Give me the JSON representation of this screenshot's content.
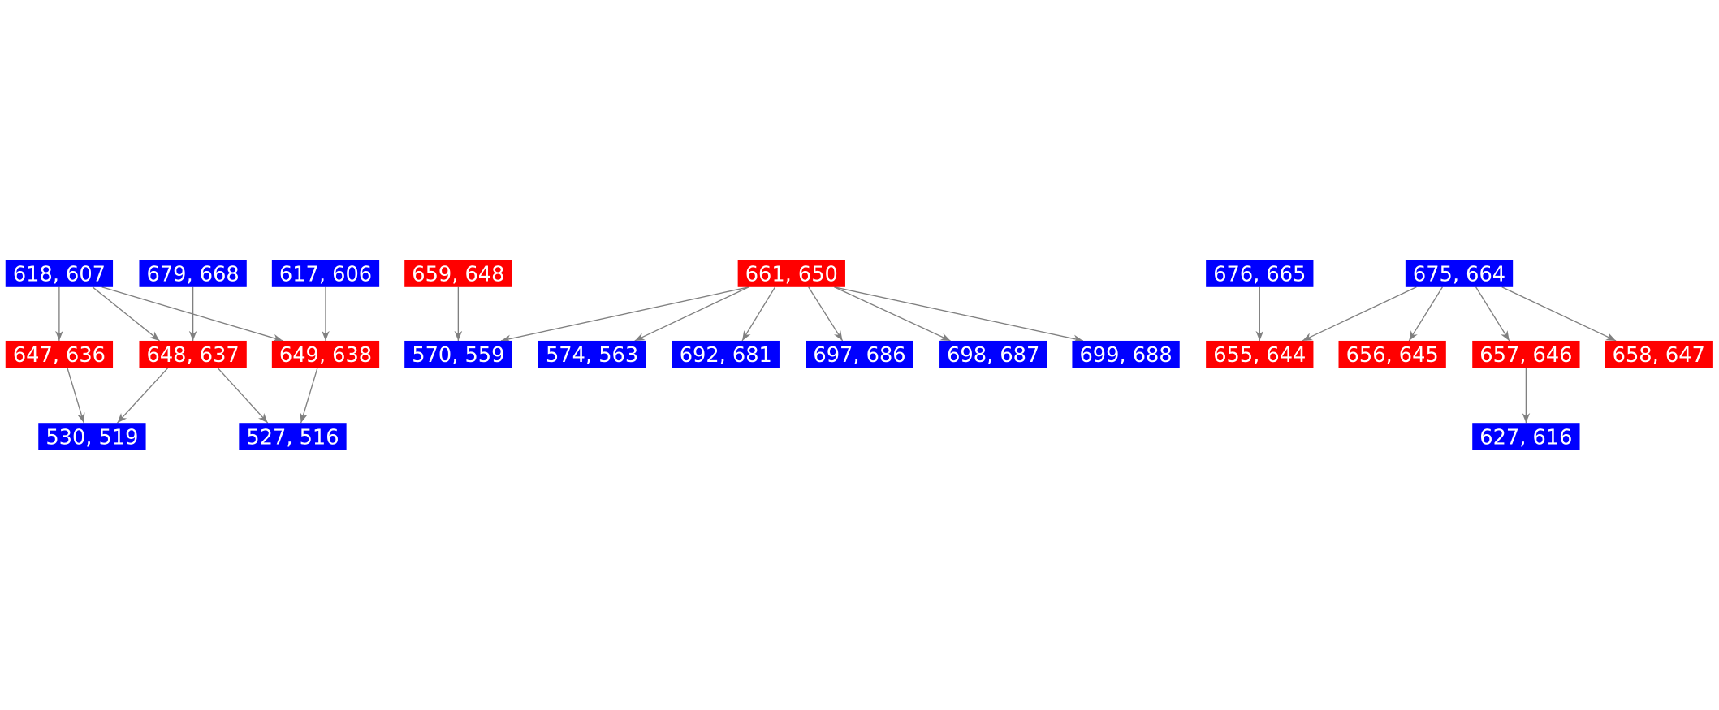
{
  "colors": {
    "blue": "#0000ff",
    "red": "#ff0000",
    "edge": "#808080",
    "text": "#ffffff"
  },
  "nodes": [
    {
      "id": "618, 607",
      "color": "blue"
    },
    {
      "id": "679, 668",
      "color": "blue"
    },
    {
      "id": "617, 606",
      "color": "blue"
    },
    {
      "id": "659, 648",
      "color": "red"
    },
    {
      "id": "661, 650",
      "color": "red"
    },
    {
      "id": "676, 665",
      "color": "blue"
    },
    {
      "id": "675, 664",
      "color": "blue"
    },
    {
      "id": "647, 636",
      "color": "red"
    },
    {
      "id": "648, 637",
      "color": "red"
    },
    {
      "id": "649, 638",
      "color": "red"
    },
    {
      "id": "570, 559",
      "color": "blue"
    },
    {
      "id": "574, 563",
      "color": "blue"
    },
    {
      "id": "692, 681",
      "color": "blue"
    },
    {
      "id": "697, 686",
      "color": "blue"
    },
    {
      "id": "698, 687",
      "color": "blue"
    },
    {
      "id": "699, 688",
      "color": "blue"
    },
    {
      "id": "655, 644",
      "color": "red"
    },
    {
      "id": "656, 645",
      "color": "red"
    },
    {
      "id": "657, 646",
      "color": "red"
    },
    {
      "id": "658, 647",
      "color": "red"
    },
    {
      "id": "530, 519",
      "color": "blue"
    },
    {
      "id": "527, 516",
      "color": "blue"
    },
    {
      "id": "627, 616",
      "color": "blue"
    }
  ],
  "edges": [
    [
      "618, 607",
      "647, 636"
    ],
    [
      "618, 607",
      "648, 637"
    ],
    [
      "618, 607",
      "649, 638"
    ],
    [
      "679, 668",
      "648, 637"
    ],
    [
      "617, 606",
      "649, 638"
    ],
    [
      "647, 636",
      "530, 519"
    ],
    [
      "648, 637",
      "530, 519"
    ],
    [
      "648, 637",
      "527, 516"
    ],
    [
      "649, 638",
      "527, 516"
    ],
    [
      "659, 648",
      "570, 559"
    ],
    [
      "661, 650",
      "570, 559"
    ],
    [
      "661, 650",
      "574, 563"
    ],
    [
      "661, 650",
      "692, 681"
    ],
    [
      "661, 650",
      "697, 686"
    ],
    [
      "661, 650",
      "698, 687"
    ],
    [
      "661, 650",
      "699, 688"
    ],
    [
      "676, 665",
      "655, 644"
    ],
    [
      "675, 664",
      "655, 644"
    ],
    [
      "675, 664",
      "656, 645"
    ],
    [
      "675, 664",
      "657, 646"
    ],
    [
      "675, 664",
      "658, 647"
    ],
    [
      "657, 646",
      "627, 616"
    ]
  ]
}
